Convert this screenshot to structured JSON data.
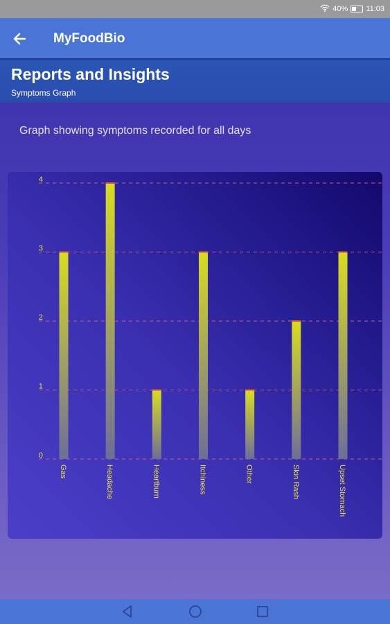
{
  "status_bar": {
    "battery_text": "40%",
    "time": "11:03"
  },
  "appbar": {
    "title": "MyFoodBio"
  },
  "header": {
    "title": "Reports and Insights",
    "subtitle": "Symptoms Graph"
  },
  "description": "Graph showing symptoms recorded for all days",
  "chart_data": {
    "type": "bar",
    "categories": [
      "Gas",
      "Headache",
      "Heartburn",
      "Itchiness",
      "Other",
      "Skin Rash",
      "Upset Stomach"
    ],
    "values": [
      3,
      4,
      1,
      3,
      1,
      2,
      3
    ],
    "ylim": [
      0,
      4
    ],
    "yticks": [
      "0",
      "1",
      "2",
      "3",
      "4"
    ],
    "grid": true,
    "title": "",
    "xlabel": "",
    "ylabel": "",
    "colors": {
      "bar_top": "#d9dc1e",
      "bar_bottom": "#6e6e98",
      "bar_cap": "#e0543a",
      "grid": "#c9607a",
      "label": "#e8e23a"
    }
  }
}
